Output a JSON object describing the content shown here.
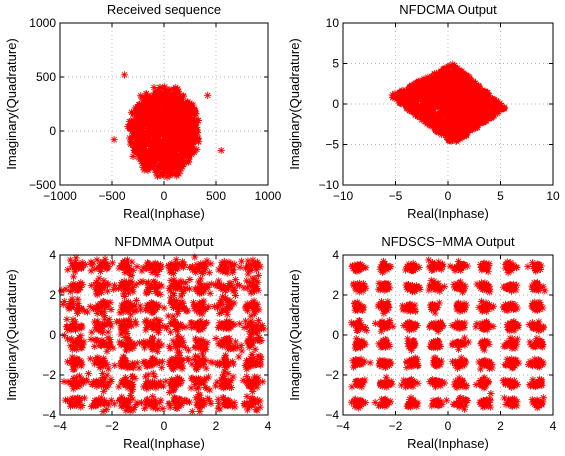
{
  "chart_data": [
    {
      "type": "scatter",
      "title": "Received sequence",
      "xlabel": "Real(Inphase)",
      "ylabel": "Imaginary(Quadrature)",
      "xlim": [
        -1000,
        1000
      ],
      "ylim": [
        -500,
        1000
      ],
      "xticks": [
        -1000,
        -500,
        0,
        500,
        1000
      ],
      "yticks": [
        -500,
        0,
        500,
        1000
      ],
      "xtick_labels": [
        "−1000",
        "−500",
        "0",
        "500",
        "1000"
      ],
      "ytick_labels": [
        "−500",
        "0",
        "500",
        "1000"
      ],
      "grid": true,
      "marker": "*",
      "color": "#ff0000",
      "distribution": {
        "shape": "disc",
        "center": [
          0,
          0
        ],
        "radius": 300
      },
      "outliers": [
        [
          -380,
          520
        ],
        [
          550,
          -180
        ],
        [
          -480,
          -80
        ],
        [
          420,
          330
        ]
      ]
    },
    {
      "type": "scatter",
      "title": "NFDCMA Output",
      "xlabel": "Real(Inphase)",
      "ylabel": "Imaginary(Quadrature)",
      "xlim": [
        -10,
        10
      ],
      "ylim": [
        -10,
        10
      ],
      "xticks": [
        -10,
        -5,
        0,
        5,
        10
      ],
      "yticks": [
        -10,
        -5,
        0,
        5,
        10
      ],
      "xtick_labels": [
        "−10",
        "−5",
        "0",
        "5",
        "10"
      ],
      "ytick_labels": [
        "−10",
        "−5",
        "0",
        "5",
        "10"
      ],
      "grid": true,
      "marker": "*",
      "color": "#ff0000",
      "distribution": {
        "shape": "diamond",
        "vertices": [
          [
            -5.5,
            1
          ],
          [
            0.5,
            5
          ],
          [
            5.5,
            -0.5
          ],
          [
            0.5,
            -5
          ]
        ]
      }
    },
    {
      "type": "scatter",
      "title": "NFDMMA Output",
      "xlabel": "Real(Inphase)",
      "ylabel": "Imaginary(Quadrature)",
      "xlim": [
        -4,
        4
      ],
      "ylim": [
        -4,
        4
      ],
      "xticks": [
        -4,
        -2,
        0,
        2,
        4
      ],
      "yticks": [
        -4,
        -2,
        0,
        2,
        4
      ],
      "xtick_labels": [
        "−4",
        "−2",
        "0",
        "2",
        "4"
      ],
      "ytick_labels": [
        "−4",
        "−2",
        "0",
        "2",
        "4"
      ],
      "grid": true,
      "marker": "*",
      "color": "#ff0000",
      "distribution": {
        "shape": "64-QAM clusters",
        "levels": [
          -3.4,
          -2.4,
          -1.4,
          -0.45,
          0.45,
          1.4,
          2.4,
          3.4
        ],
        "spread": 0.35
      }
    },
    {
      "type": "scatter",
      "title": "NFDSCS−MMA Output",
      "xlabel": "Real(Inphase)",
      "ylabel": "Imaginary(Quadrature)",
      "xlim": [
        -4,
        4
      ],
      "ylim": [
        -4,
        4
      ],
      "xticks": [
        -4,
        -2,
        0,
        2,
        4
      ],
      "yticks": [
        -4,
        -2,
        0,
        2,
        4
      ],
      "xtick_labels": [
        "−4",
        "−2",
        "0",
        "2",
        "4"
      ],
      "ytick_labels": [
        "−4",
        "−2",
        "0",
        "2",
        "4"
      ],
      "grid": true,
      "marker": "*",
      "color": "#ff0000",
      "distribution": {
        "shape": "64-QAM clusters",
        "levels": [
          -3.4,
          -2.4,
          -1.4,
          -0.45,
          0.45,
          1.4,
          2.4,
          3.4
        ],
        "spread": 0.22
      }
    }
  ]
}
